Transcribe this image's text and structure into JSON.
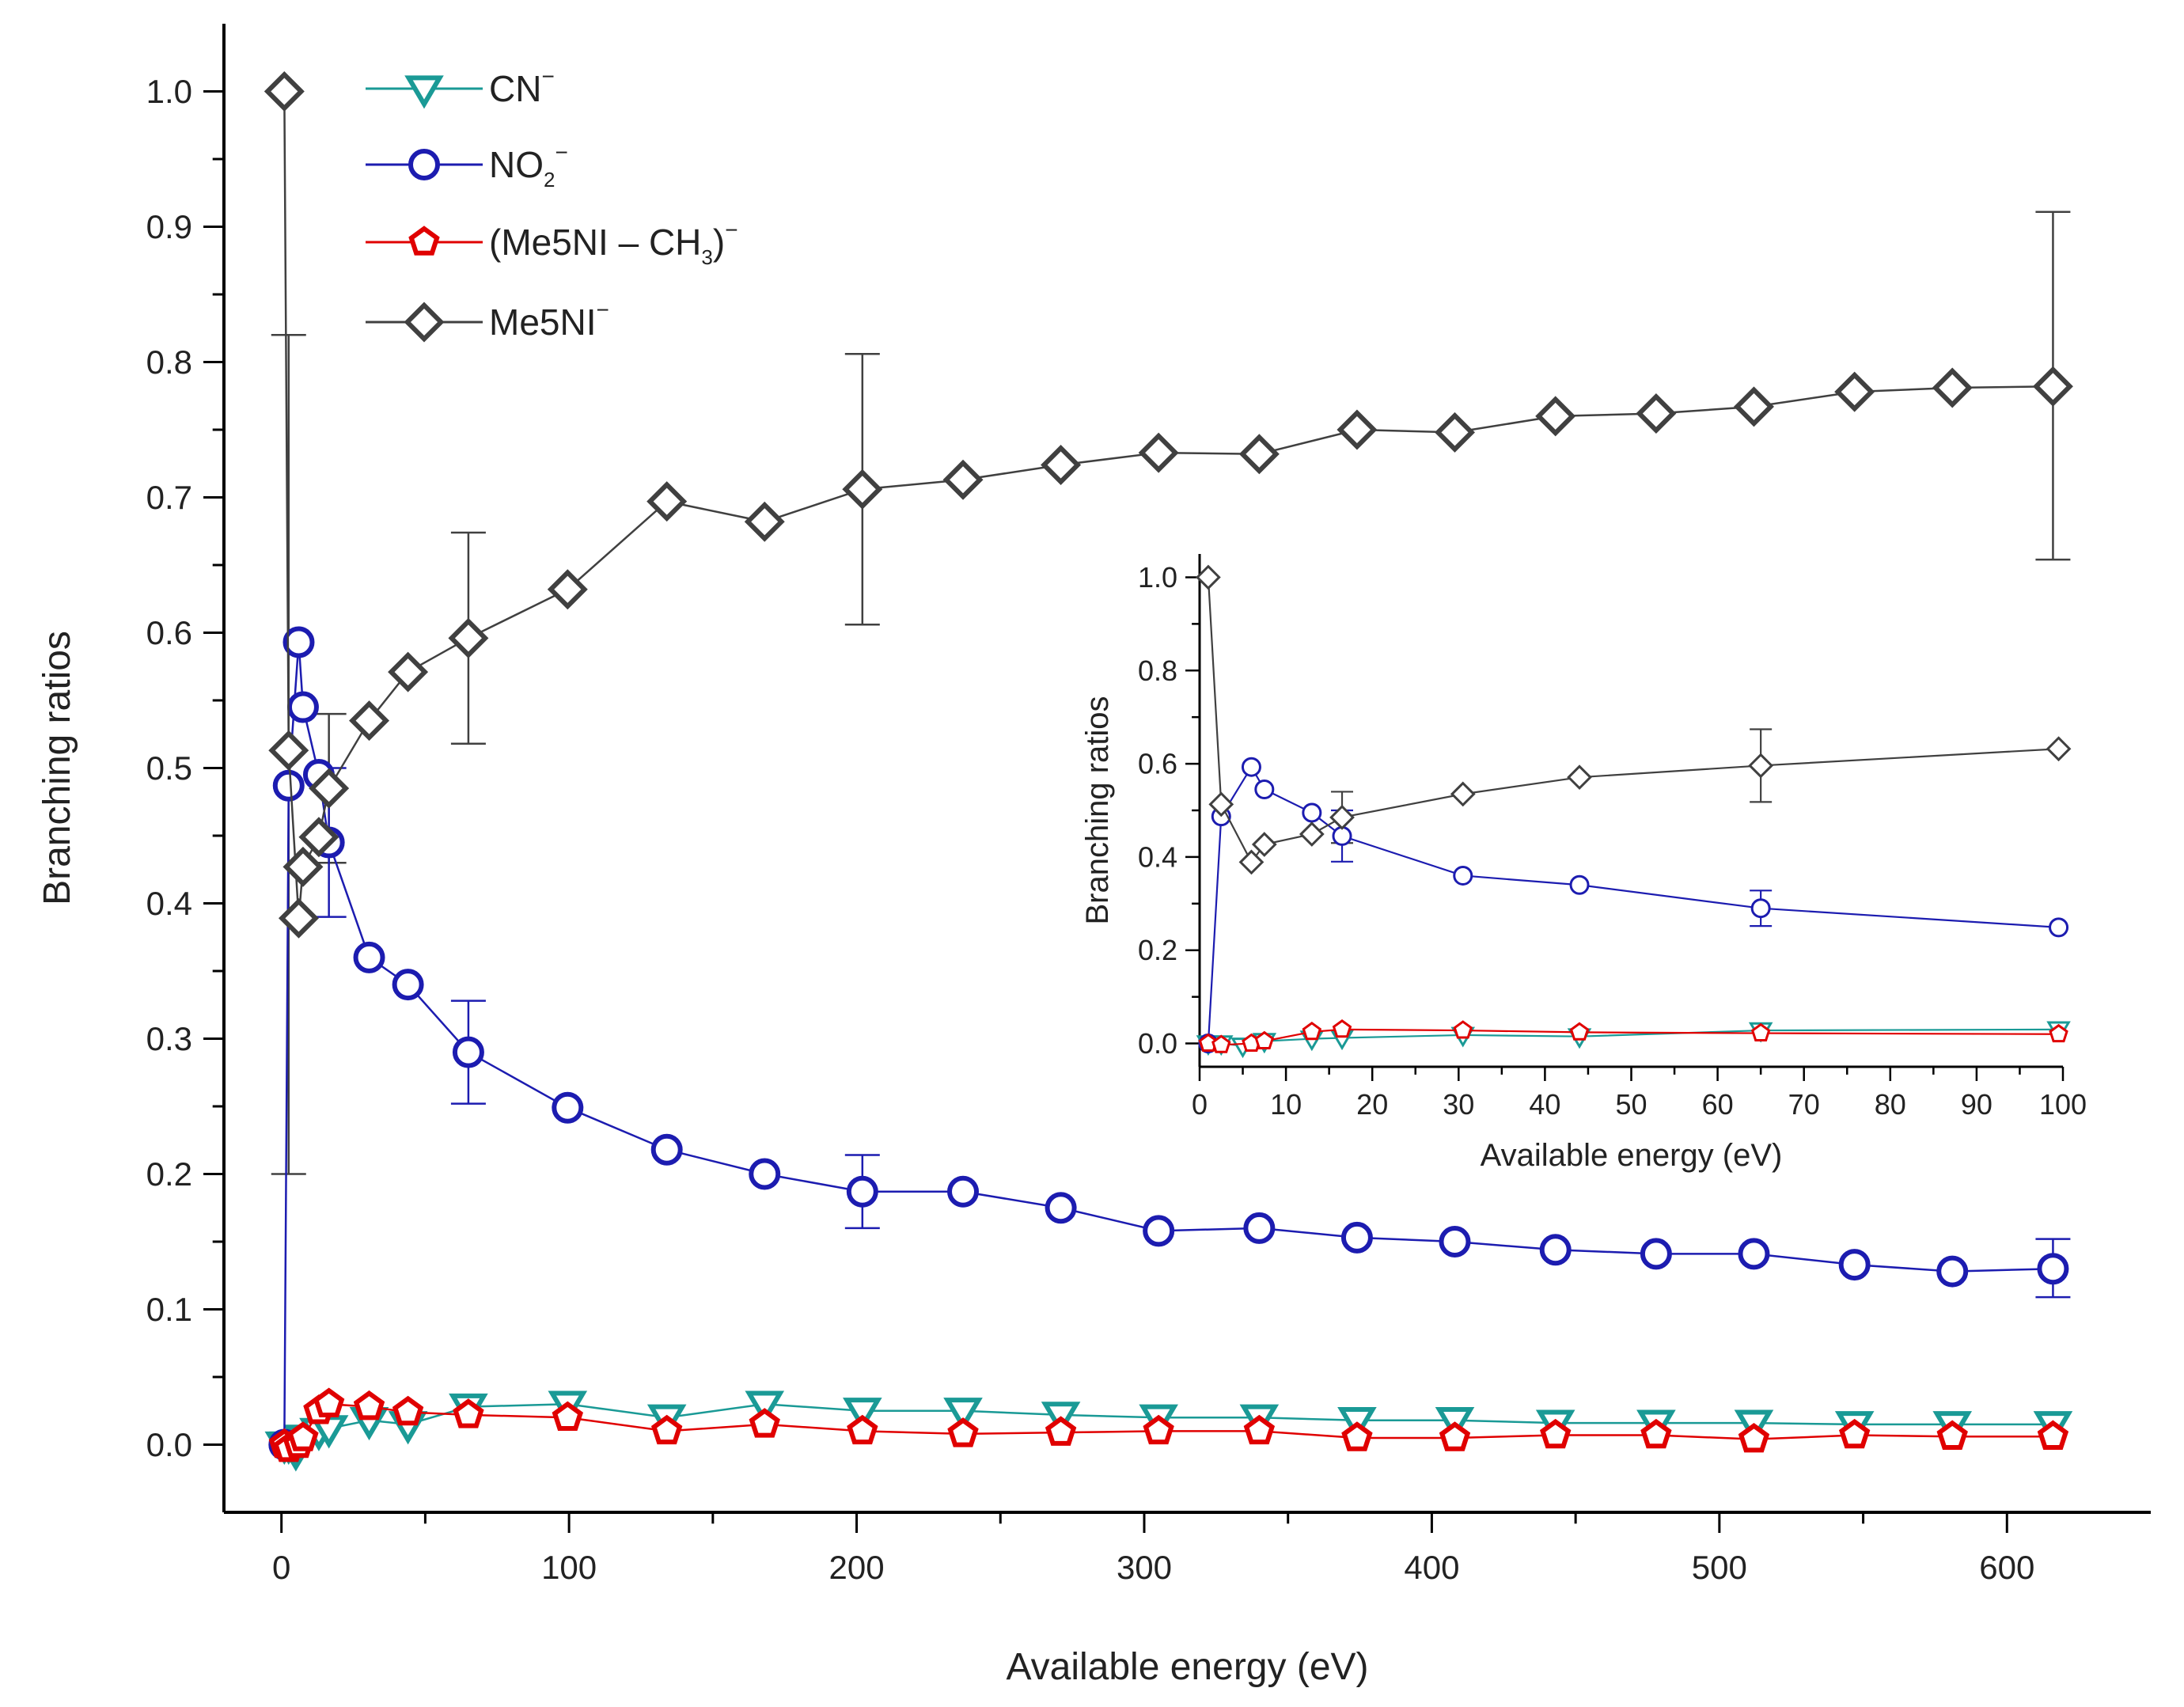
{
  "chart_data": [
    {
      "type": "line",
      "title": "",
      "xlabel": "Available energy (eV)",
      "ylabel": "Branching ratios",
      "xlim": [
        -20,
        650
      ],
      "ylim": [
        -0.05,
        1.05
      ],
      "xticks": [
        "0",
        "100",
        "200",
        "300",
        "400",
        "500",
        "600"
      ],
      "yticks": [
        "0.0",
        "0.1",
        "0.2",
        "0.3",
        "0.4",
        "0.5",
        "0.6",
        "0.7",
        "0.8",
        "0.9",
        "1.0"
      ],
      "legend_position": "top-left",
      "series": [
        {
          "name": "CN",
          "sup": "−",
          "sub": "",
          "marker": "triangle-down",
          "color": "#1a9a96",
          "x": [
            1,
            2.5,
            5,
            7.5,
            13,
            16.5,
            30.5,
            44,
            65,
            99.5,
            134,
            168,
            202,
            237,
            271,
            305,
            340,
            374,
            408,
            443,
            478,
            512,
            547,
            581,
            616
          ],
          "y": [
            0.0,
            0.0,
            -0.005,
            0.005,
            0.01,
            0.012,
            0.018,
            0.015,
            0.028,
            0.03,
            0.02,
            0.03,
            0.025,
            0.025,
            0.022,
            0.02,
            0.02,
            0.018,
            0.018,
            0.016,
            0.016,
            0.016,
            0.015,
            0.015,
            0.015
          ]
        },
        {
          "name": "NO",
          "sup": "−",
          "sub": "2",
          "marker": "circle",
          "color": "#1c1cb0",
          "x": [
            1,
            2.5,
            6,
            7.5,
            13,
            16.5,
            30.5,
            44,
            65,
            99.5,
            134,
            168,
            202,
            237,
            271,
            305,
            340,
            374,
            408,
            443,
            478,
            512,
            547,
            581,
            616
          ],
          "y": [
            0.0,
            0.487,
            0.593,
            0.545,
            0.495,
            0.445,
            0.36,
            0.34,
            0.29,
            0.249,
            0.218,
            0.2,
            0.187,
            0.187,
            0.175,
            0.158,
            0.16,
            0.153,
            0.15,
            0.144,
            0.141,
            0.141,
            0.133,
            0.128,
            0.13
          ]
        },
        {
          "name": "(Me5NI – CH",
          "sup": "−",
          "sub": "3",
          "suffix": ")",
          "marker": "pentagon",
          "color": "#e00000",
          "x": [
            1,
            2.5,
            6,
            7.5,
            13,
            16.5,
            30.5,
            44,
            65,
            99.5,
            134,
            168,
            202,
            237,
            271,
            305,
            340,
            374,
            408,
            443,
            478,
            512,
            547,
            581,
            616
          ],
          "y": [
            0.0,
            -0.003,
            0.0,
            0.005,
            0.025,
            0.03,
            0.028,
            0.024,
            0.022,
            0.02,
            0.01,
            0.015,
            0.01,
            0.008,
            0.009,
            0.01,
            0.01,
            0.005,
            0.005,
            0.007,
            0.007,
            0.004,
            0.007,
            0.006,
            0.006
          ]
        },
        {
          "name": "Me5NI",
          "sup": "−",
          "sub": "",
          "marker": "diamond",
          "color": "#404040",
          "x": [
            1,
            2.5,
            6,
            7.5,
            13,
            16.5,
            30.5,
            44,
            65,
            99.5,
            134,
            168,
            202,
            237,
            271,
            305,
            340,
            374,
            408,
            443,
            478,
            512,
            547,
            581,
            616
          ],
          "y": [
            1.0,
            0.513,
            0.389,
            0.427,
            0.449,
            0.485,
            0.535,
            0.571,
            0.596,
            0.632,
            0.697,
            0.682,
            0.706,
            0.713,
            0.724,
            0.733,
            0.732,
            0.75,
            0.748,
            0.76,
            0.762,
            0.767,
            0.778,
            0.781,
            0.782
          ]
        }
      ],
      "error_bars": [
        {
          "series": "Me5NI",
          "x": 2.5,
          "low": 0.2,
          "high": 0.82
        },
        {
          "series": "Me5NI",
          "x": 16.5,
          "low": 0.43,
          "high": 0.54
        },
        {
          "series": "Me5NI",
          "x": 65,
          "low": 0.518,
          "high": 0.674
        },
        {
          "series": "Me5NI",
          "x": 202,
          "low": 0.606,
          "high": 0.806
        },
        {
          "series": "Me5NI",
          "x": 616,
          "low": 0.654,
          "high": 0.911
        },
        {
          "series": "NO",
          "x": 16.5,
          "low": 0.39,
          "high": 0.5
        },
        {
          "series": "NO",
          "x": 65,
          "low": 0.252,
          "high": 0.328
        },
        {
          "series": "NO",
          "x": 202,
          "low": 0.16,
          "high": 0.214
        },
        {
          "series": "NO",
          "x": 616,
          "low": 0.109,
          "high": 0.152
        }
      ]
    },
    {
      "type": "line",
      "title": "inset",
      "xlabel": "Available energy (eV)",
      "ylabel": "Branching ratios",
      "xlim": [
        0,
        100
      ],
      "ylim": [
        -0.05,
        1.05
      ],
      "xticks": [
        "0",
        "10",
        "20",
        "30",
        "40",
        "50",
        "60",
        "70",
        "80",
        "90",
        "100"
      ],
      "yticks": [
        "0.0",
        "0.2",
        "0.4",
        "0.6",
        "0.8",
        "1.0"
      ],
      "series": [
        {
          "name": "CN",
          "marker": "triangle-down",
          "color": "#1a9a96",
          "x": [
            1,
            2.5,
            5,
            7.5,
            13,
            16.5,
            30.5,
            44,
            65,
            99.5
          ],
          "y": [
            0.0,
            0.0,
            -0.005,
            0.005,
            0.01,
            0.012,
            0.018,
            0.015,
            0.028,
            0.03
          ]
        },
        {
          "name": "NO",
          "marker": "circle",
          "color": "#1c1cb0",
          "x": [
            1,
            2.5,
            6,
            7.5,
            13,
            16.5,
            30.5,
            44,
            65,
            99.5
          ],
          "y": [
            0.0,
            0.487,
            0.593,
            0.545,
            0.495,
            0.445,
            0.36,
            0.34,
            0.29,
            0.249
          ]
        },
        {
          "name": "(Me5NI – CH3)",
          "marker": "pentagon",
          "color": "#e00000",
          "x": [
            1,
            2.5,
            6,
            7.5,
            13,
            16.5,
            30.5,
            44,
            65,
            99.5
          ],
          "y": [
            0.0,
            -0.003,
            0.0,
            0.005,
            0.025,
            0.03,
            0.028,
            0.024,
            0.022,
            0.02
          ]
        },
        {
          "name": "Me5NI",
          "marker": "diamond",
          "color": "#404040",
          "x": [
            1,
            2.5,
            6,
            7.5,
            13,
            16.5,
            30.5,
            44,
            65,
            99.5
          ],
          "y": [
            1.0,
            0.513,
            0.389,
            0.427,
            0.449,
            0.485,
            0.535,
            0.571,
            0.596,
            0.632
          ]
        }
      ],
      "error_bars": [
        {
          "series": "Me5NI",
          "x": 16.5,
          "low": 0.43,
          "high": 0.54
        },
        {
          "series": "Me5NI",
          "x": 65,
          "low": 0.518,
          "high": 0.674
        },
        {
          "series": "NO",
          "x": 16.5,
          "low": 0.39,
          "high": 0.5
        },
        {
          "series": "NO",
          "x": 65,
          "low": 0.252,
          "high": 0.328
        }
      ]
    }
  ]
}
